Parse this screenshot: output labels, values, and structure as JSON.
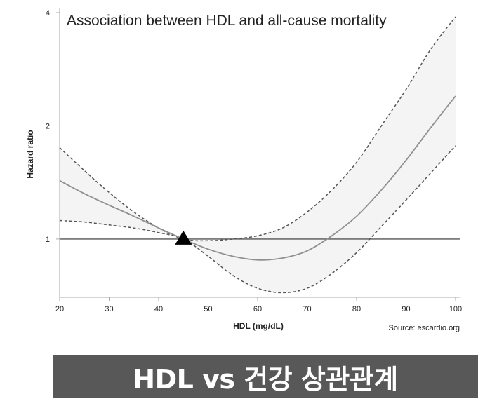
{
  "chart_data": {
    "type": "line",
    "title": "Association between HDL and all-cause mortality",
    "xlabel": "HDL (mg/dL)",
    "ylabel": "Hazard ratio",
    "source": "Source: escardio.org",
    "xlim": [
      20,
      100
    ],
    "ylim": [
      0.7,
      4
    ],
    "y_scale": "log",
    "x_ticks": [
      20,
      30,
      40,
      50,
      60,
      70,
      80,
      90,
      100
    ],
    "y_ticks": [
      1,
      2,
      4
    ],
    "reference_line": 1,
    "marker": {
      "shape": "triangle",
      "x": 45,
      "y": 1
    },
    "series": [
      {
        "role": "estimate",
        "style": "solid",
        "x": [
          20,
          25,
          30,
          35,
          40,
          45,
          50,
          55,
          60,
          65,
          70,
          75,
          80,
          85,
          90,
          95,
          100
        ],
        "values": [
          1.43,
          1.32,
          1.23,
          1.15,
          1.07,
          1.0,
          0.94,
          0.9,
          0.88,
          0.89,
          0.93,
          1.02,
          1.15,
          1.35,
          1.62,
          1.98,
          2.4
        ]
      },
      {
        "role": "upper",
        "style": "dashed",
        "x": [
          20,
          25,
          30,
          35,
          40,
          45,
          50,
          55,
          60,
          65,
          70,
          75,
          80,
          85,
          90,
          95,
          100
        ],
        "values": [
          1.75,
          1.52,
          1.33,
          1.18,
          1.07,
          1.0,
          0.99,
          1.0,
          1.02,
          1.07,
          1.18,
          1.35,
          1.6,
          2.0,
          2.5,
          3.2,
          3.9
        ]
      },
      {
        "role": "lower",
        "style": "dashed",
        "x": [
          20,
          25,
          30,
          35,
          40,
          45,
          50,
          55,
          60,
          65,
          70,
          75,
          80,
          85,
          90,
          95,
          100
        ],
        "values": [
          1.12,
          1.11,
          1.09,
          1.07,
          1.04,
          1.0,
          0.9,
          0.8,
          0.74,
          0.72,
          0.74,
          0.81,
          0.92,
          1.08,
          1.27,
          1.5,
          1.77
        ]
      }
    ],
    "grid": false,
    "legend": "none"
  },
  "banner": {
    "text": "HDL vs 건강 상관관계"
  },
  "colors": {
    "line": "#909090",
    "dashed": "#555555",
    "band": "#f4f4f4",
    "axis": "#aaaaaa",
    "text": "#222222",
    "banner_bg": "#585858"
  }
}
